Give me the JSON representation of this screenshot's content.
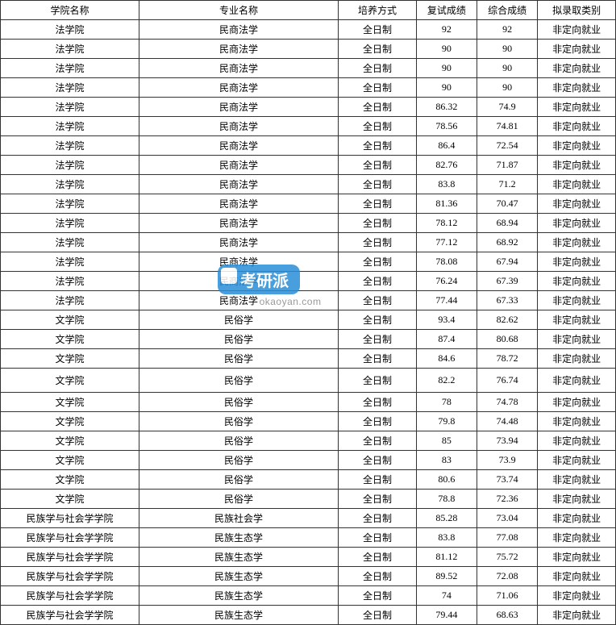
{
  "table": {
    "columns": [
      "学院名称",
      "专业名称",
      "培养方式",
      "复试成绩",
      "综合成绩",
      "拟录取类别"
    ],
    "rows": [
      [
        "法学院",
        "民商法学",
        "全日制",
        "92",
        "92",
        "非定向就业"
      ],
      [
        "法学院",
        "民商法学",
        "全日制",
        "90",
        "90",
        "非定向就业"
      ],
      [
        "法学院",
        "民商法学",
        "全日制",
        "90",
        "90",
        "非定向就业"
      ],
      [
        "法学院",
        "民商法学",
        "全日制",
        "90",
        "90",
        "非定向就业"
      ],
      [
        "法学院",
        "民商法学",
        "全日制",
        "86.32",
        "74.9",
        "非定向就业"
      ],
      [
        "法学院",
        "民商法学",
        "全日制",
        "78.56",
        "74.81",
        "非定向就业"
      ],
      [
        "法学院",
        "民商法学",
        "全日制",
        "86.4",
        "72.54",
        "非定向就业"
      ],
      [
        "法学院",
        "民商法学",
        "全日制",
        "82.76",
        "71.87",
        "非定向就业"
      ],
      [
        "法学院",
        "民商法学",
        "全日制",
        "83.8",
        "71.2",
        "非定向就业"
      ],
      [
        "法学院",
        "民商法学",
        "全日制",
        "81.36",
        "70.47",
        "非定向就业"
      ],
      [
        "法学院",
        "民商法学",
        "全日制",
        "78.12",
        "68.94",
        "非定向就业"
      ],
      [
        "法学院",
        "民商法学",
        "全日制",
        "77.12",
        "68.92",
        "非定向就业"
      ],
      [
        "法学院",
        "民商法学",
        "全日制",
        "78.08",
        "67.94",
        "非定向就业"
      ],
      [
        "法学院",
        "民商法学",
        "全日制",
        "76.24",
        "67.39",
        "非定向就业"
      ],
      [
        "法学院",
        "民商法学",
        "全日制",
        "77.44",
        "67.33",
        "非定向就业"
      ],
      [
        "文学院",
        "民俗学",
        "全日制",
        "93.4",
        "82.62",
        "非定向就业"
      ],
      [
        "文学院",
        "民俗学",
        "全日制",
        "87.4",
        "80.68",
        "非定向就业"
      ],
      [
        "文学院",
        "民俗学",
        "全日制",
        "84.6",
        "78.72",
        "非定向就业"
      ],
      [
        "文学院",
        "民俗学",
        "全日制",
        "82.2",
        "76.74",
        "非定向就业"
      ],
      [
        "文学院",
        "民俗学",
        "全日制",
        "78",
        "74.78",
        "非定向就业"
      ],
      [
        "文学院",
        "民俗学",
        "全日制",
        "79.8",
        "74.48",
        "非定向就业"
      ],
      [
        "文学院",
        "民俗学",
        "全日制",
        "85",
        "73.94",
        "非定向就业"
      ],
      [
        "文学院",
        "民俗学",
        "全日制",
        "83",
        "73.9",
        "非定向就业"
      ],
      [
        "文学院",
        "民俗学",
        "全日制",
        "80.6",
        "73.74",
        "非定向就业"
      ],
      [
        "文学院",
        "民俗学",
        "全日制",
        "78.8",
        "72.36",
        "非定向就业"
      ],
      [
        "民族学与社会学学院",
        "民族社会学",
        "全日制",
        "85.28",
        "73.04",
        "非定向就业"
      ],
      [
        "民族学与社会学学院",
        "民族生态学",
        "全日制",
        "83.8",
        "77.08",
        "非定向就业"
      ],
      [
        "民族学与社会学学院",
        "民族生态学",
        "全日制",
        "81.12",
        "75.72",
        "非定向就业"
      ],
      [
        "民族学与社会学学院",
        "民族生态学",
        "全日制",
        "89.52",
        "72.08",
        "非定向就业"
      ],
      [
        "民族学与社会学学院",
        "民族生态学",
        "全日制",
        "74",
        "71.06",
        "非定向就业"
      ],
      [
        "民族学与社会学学院",
        "民族生态学",
        "全日制",
        "79.44",
        "68.63",
        "非定向就业"
      ]
    ],
    "tall_row_index": 18
  },
  "watermark": {
    "brand": "考研派",
    "url": "okaoyan.com"
  }
}
